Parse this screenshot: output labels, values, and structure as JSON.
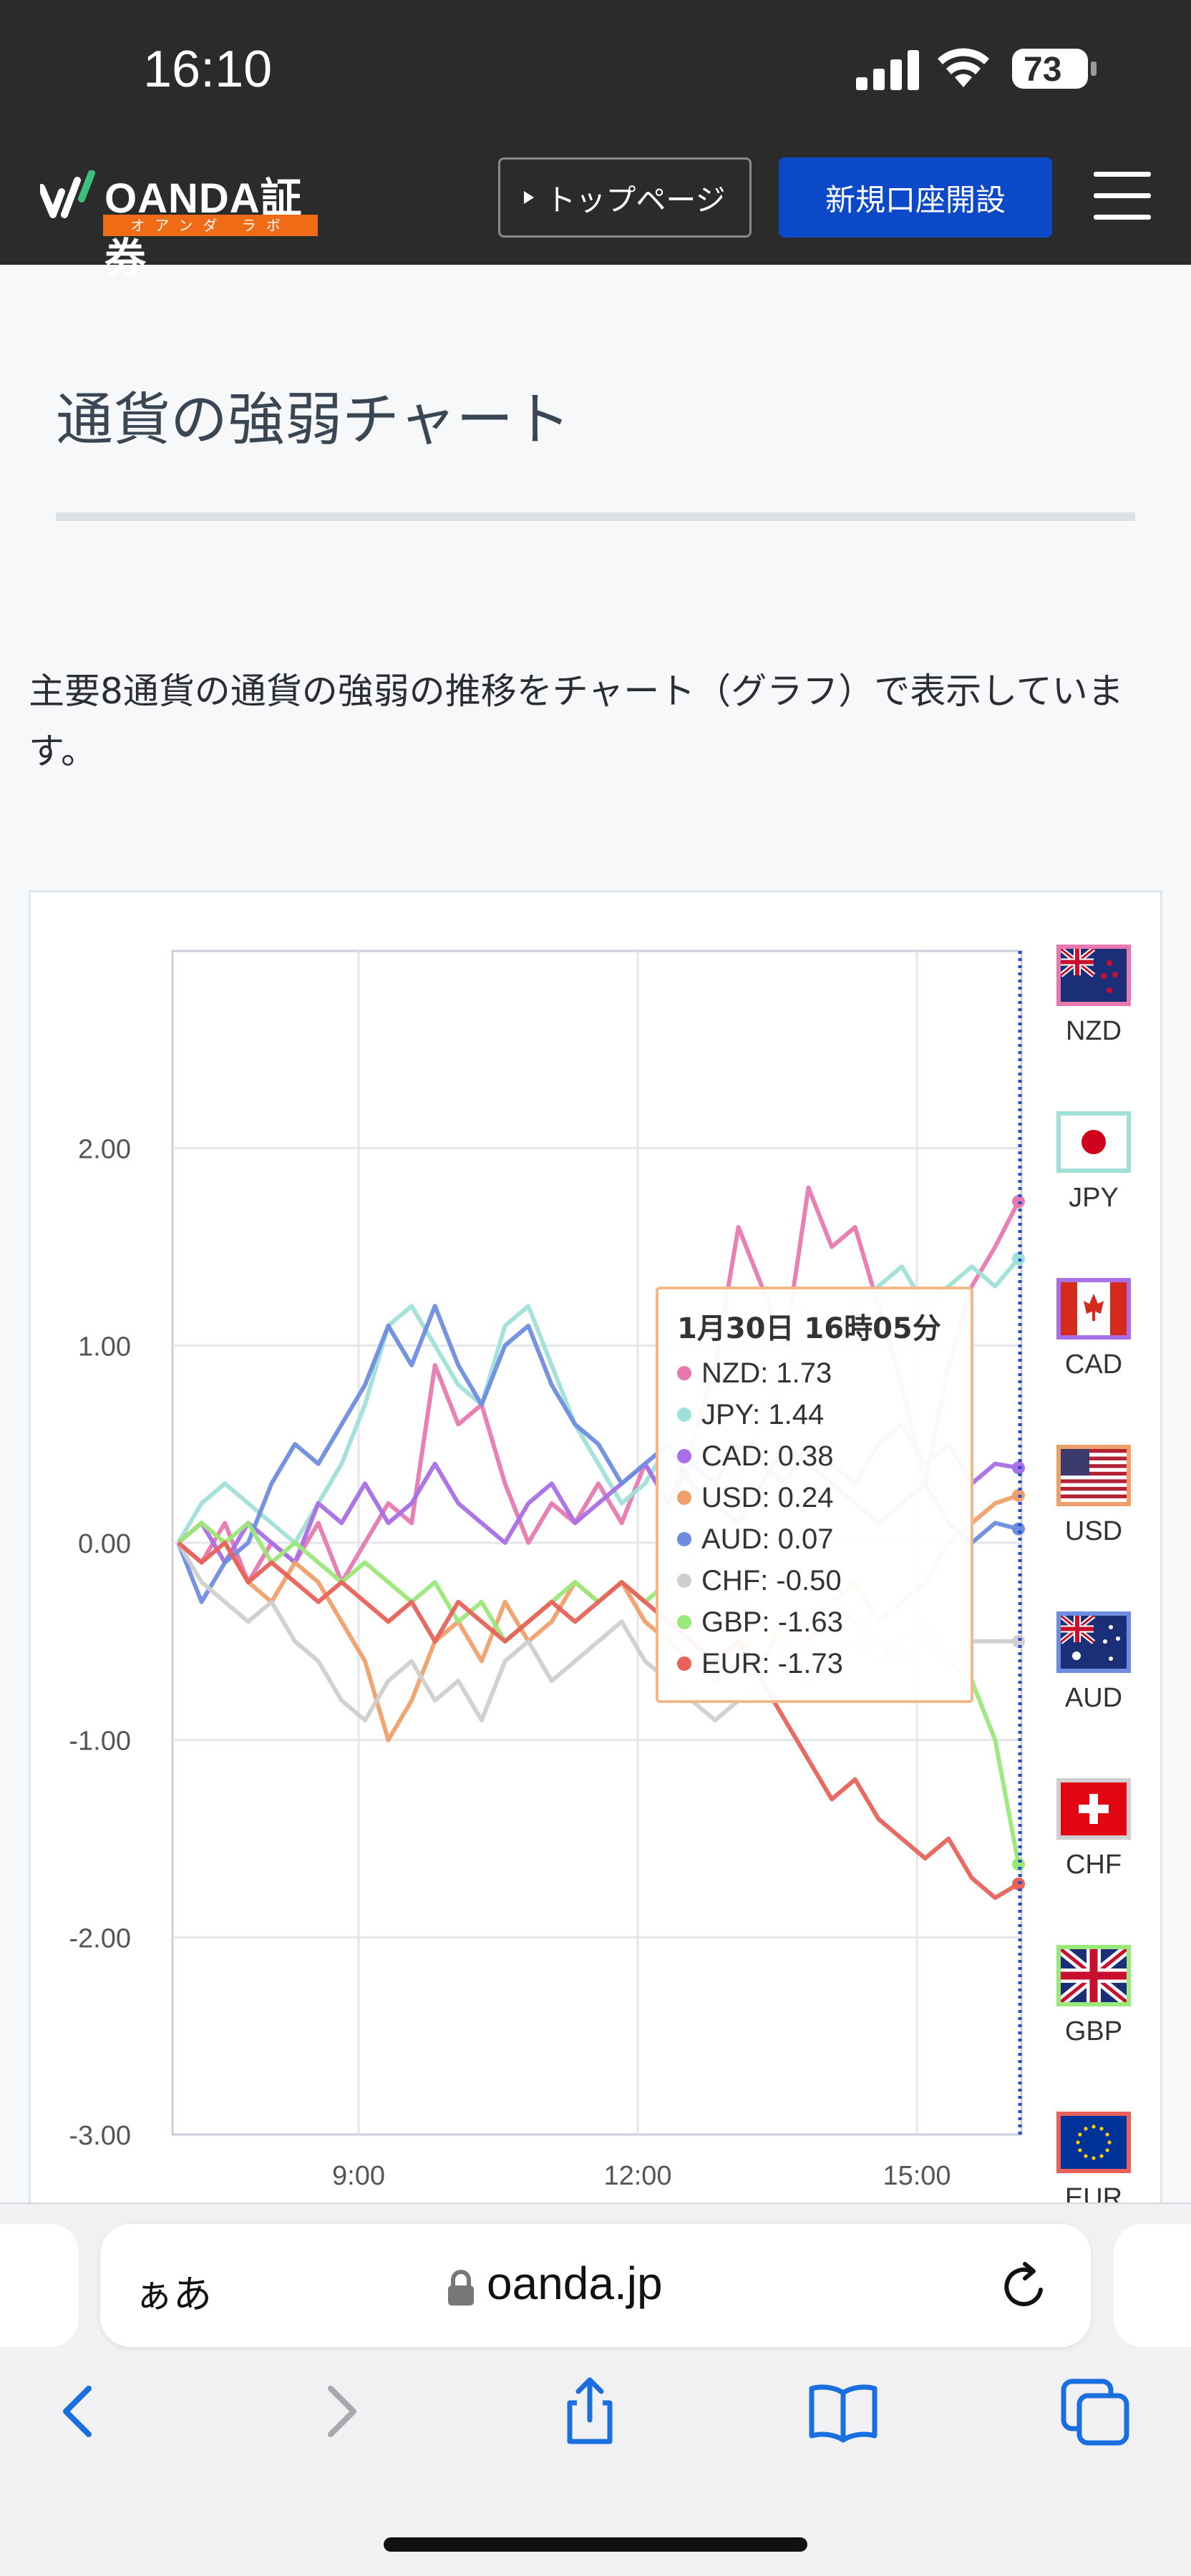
{
  "status_bar": {
    "time": "16:10",
    "battery": "73"
  },
  "header": {
    "logo_text": "OANDA証券",
    "logo_sub": "オアンダ ラボ",
    "top_page_label": "トップページ",
    "open_account_label": "新規口座開設"
  },
  "page": {
    "title": "通貨の強弱チャート",
    "description": "主要8通貨の通貨の強弱の推移をチャート（グラフ）で表示しています。"
  },
  "chart_data": {
    "type": "line",
    "y_ticks": [
      "2.00",
      "1.00",
      "0.00",
      "-1.00",
      "-2.00",
      "-3.00"
    ],
    "ylim": [
      -3.0,
      3.0
    ],
    "x_ticks": [
      "9:00",
      "12:00",
      "15:00"
    ],
    "series": [
      {
        "name": "NZD",
        "color": "#e879b0",
        "values": [
          0.0,
          -0.1,
          0.1,
          -0.2,
          0.0,
          -0.1,
          0.1,
          -0.2,
          0.0,
          0.2,
          0.1,
          0.9,
          0.6,
          0.7,
          0.3,
          0.0,
          0.2,
          0.1,
          0.3,
          0.1,
          0.4,
          0.2,
          0.5,
          0.9,
          1.6,
          1.3,
          1.0,
          1.8,
          1.5,
          1.6,
          1.2,
          0.8,
          0.3,
          0.9,
          1.3,
          1.5,
          1.73
        ]
      },
      {
        "name": "JPY",
        "color": "#9fe0d8",
        "values": [
          0.0,
          0.2,
          0.3,
          0.2,
          0.1,
          0.0,
          0.2,
          0.4,
          0.7,
          1.1,
          1.2,
          1.0,
          0.8,
          0.7,
          1.1,
          1.2,
          0.9,
          0.6,
          0.4,
          0.2,
          0.3,
          0.5,
          0.6,
          0.4,
          0.3,
          0.6,
          0.9,
          1.1,
          1.0,
          1.2,
          1.3,
          1.4,
          1.2,
          1.3,
          1.4,
          1.3,
          1.44
        ]
      },
      {
        "name": "CAD",
        "color": "#a86fe6",
        "values": [
          0.0,
          0.1,
          -0.1,
          0.1,
          0.0,
          -0.1,
          0.2,
          0.1,
          0.3,
          0.1,
          0.2,
          0.4,
          0.2,
          0.1,
          0.0,
          0.2,
          0.3,
          0.1,
          0.2,
          0.3,
          0.4,
          0.2,
          0.4,
          0.3,
          0.5,
          0.4,
          0.3,
          0.5,
          0.4,
          0.3,
          0.5,
          0.6,
          0.4,
          0.5,
          0.3,
          0.4,
          0.38
        ]
      },
      {
        "name": "USD",
        "color": "#efa06a",
        "values": [
          0.0,
          0.1,
          0.0,
          -0.2,
          -0.3,
          -0.1,
          -0.2,
          -0.4,
          -0.6,
          -1.0,
          -0.8,
          -0.5,
          -0.4,
          -0.6,
          -0.3,
          -0.5,
          -0.4,
          -0.2,
          -0.3,
          -0.2,
          -0.4,
          -0.5,
          -0.6,
          -0.7,
          -0.5,
          -0.6,
          -0.4,
          -0.5,
          -0.3,
          -0.2,
          -0.4,
          -0.3,
          -0.2,
          0.0,
          0.1,
          0.2,
          0.24
        ]
      },
      {
        "name": "AUD",
        "color": "#6f8de0",
        "values": [
          0.0,
          -0.3,
          -0.1,
          0.0,
          0.3,
          0.5,
          0.4,
          0.6,
          0.8,
          1.1,
          0.9,
          1.2,
          0.9,
          0.7,
          1.0,
          1.1,
          0.8,
          0.6,
          0.5,
          0.3,
          0.4,
          0.5,
          0.3,
          0.2,
          0.1,
          0.3,
          0.5,
          0.4,
          0.3,
          0.2,
          0.1,
          0.2,
          0.3,
          0.1,
          0.0,
          0.1,
          0.07
        ]
      },
      {
        "name": "CHF",
        "color": "#cfcfcf",
        "values": [
          0.0,
          -0.2,
          -0.3,
          -0.4,
          -0.3,
          -0.5,
          -0.6,
          -0.8,
          -0.9,
          -0.7,
          -0.6,
          -0.8,
          -0.7,
          -0.9,
          -0.6,
          -0.5,
          -0.7,
          -0.6,
          -0.5,
          -0.4,
          -0.6,
          -0.7,
          -0.8,
          -0.9,
          -0.8,
          -0.7,
          -0.6,
          -0.7,
          -0.6,
          -0.5,
          -0.6,
          -0.5,
          -0.4,
          -0.6,
          -0.5,
          -0.5,
          -0.5
        ]
      },
      {
        "name": "GBP",
        "color": "#9be87a",
        "values": [
          0.0,
          0.1,
          0.0,
          0.1,
          -0.1,
          0.0,
          -0.1,
          -0.2,
          -0.1,
          -0.2,
          -0.3,
          -0.2,
          -0.4,
          -0.3,
          -0.5,
          -0.4,
          -0.3,
          -0.2,
          -0.3,
          -0.2,
          -0.3,
          -0.2,
          -0.1,
          -0.2,
          -0.3,
          -0.4,
          -0.5,
          -0.4,
          -0.3,
          -0.4,
          -0.5,
          -0.6,
          -0.5,
          -0.6,
          -0.7,
          -1.0,
          -1.63
        ]
      },
      {
        "name": "EUR",
        "color": "#e8625a",
        "values": [
          0.0,
          -0.1,
          0.0,
          -0.2,
          -0.1,
          -0.2,
          -0.3,
          -0.2,
          -0.3,
          -0.4,
          -0.3,
          -0.5,
          -0.3,
          -0.4,
          -0.5,
          -0.4,
          -0.3,
          -0.4,
          -0.3,
          -0.2,
          -0.3,
          -0.4,
          -0.5,
          -0.6,
          -0.5,
          -0.7,
          -0.9,
          -1.1,
          -1.3,
          -1.2,
          -1.4,
          -1.5,
          -1.6,
          -1.5,
          -1.7,
          -1.8,
          -1.73
        ]
      }
    ]
  },
  "tooltip": {
    "title": "1月30日 16時05分",
    "rows": [
      {
        "label": "NZD: 1.73",
        "color": "#e879b0"
      },
      {
        "label": "JPY: 1.44",
        "color": "#9fe0d8"
      },
      {
        "label": "CAD: 0.38",
        "color": "#a86fe6"
      },
      {
        "label": "USD: 0.24",
        "color": "#efa06a"
      },
      {
        "label": "AUD: 0.07",
        "color": "#6f8de0"
      },
      {
        "label": "CHF: -0.50",
        "color": "#cfcfcf"
      },
      {
        "label": "GBP: -1.63",
        "color": "#9be87a"
      },
      {
        "label": "EUR: -1.73",
        "color": "#e8625a"
      }
    ]
  },
  "flags": [
    {
      "code": "NZD",
      "border": "#e879b0"
    },
    {
      "code": "JPY",
      "border": "#9fe0d8"
    },
    {
      "code": "CAD",
      "border": "#a86fe6"
    },
    {
      "code": "USD",
      "border": "#efa06a"
    },
    {
      "code": "AUD",
      "border": "#6f8de0"
    },
    {
      "code": "CHF",
      "border": "#cfcfcf"
    },
    {
      "code": "GBP",
      "border": "#9be87a"
    },
    {
      "code": "EUR",
      "border": "#e8625a"
    }
  ],
  "browser": {
    "aa_label": "ぁあ",
    "url": "oanda.jp"
  }
}
